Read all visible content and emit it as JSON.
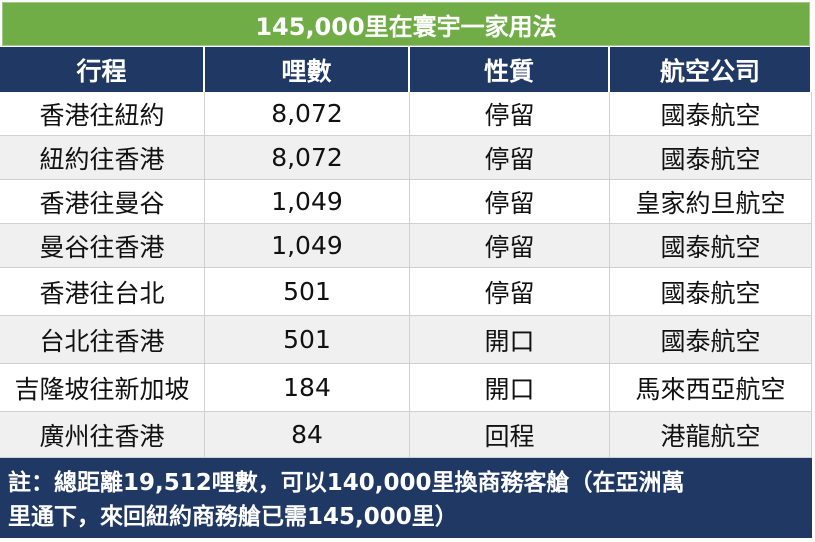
{
  "table": {
    "title": "145,000里在寰宇一家用法",
    "header": [
      "行程",
      "哩數",
      "性質",
      "航空公司"
    ],
    "rows": [
      [
        "香港往紐約",
        "8,072",
        "停留",
        "國泰航空"
      ],
      [
        "紐約往香港",
        "8,072",
        "停留",
        "國泰航空"
      ],
      [
        "香港往曼谷",
        "1,049",
        "停留",
        "皇家約旦航空"
      ],
      [
        "曼谷往香港",
        "1,049",
        "停留",
        "國泰航空"
      ],
      [
        "香港往台北",
        "501",
        "停留",
        "國泰航空"
      ],
      [
        "台北往香港",
        "501",
        "開口",
        "國泰航空"
      ],
      [
        "吉隆坡往新加坡",
        "184",
        "開口",
        "馬來西亞航空"
      ],
      [
        "廣州往香港",
        "84",
        "回程",
        "港龍航空"
      ]
    ],
    "footer": [
      "註：總距離19,512哩數，可以140,000里換商務客艙（在亞洲萬",
      "里通下，來回紐約商務艙已需145,000里）"
    ]
  }
}
